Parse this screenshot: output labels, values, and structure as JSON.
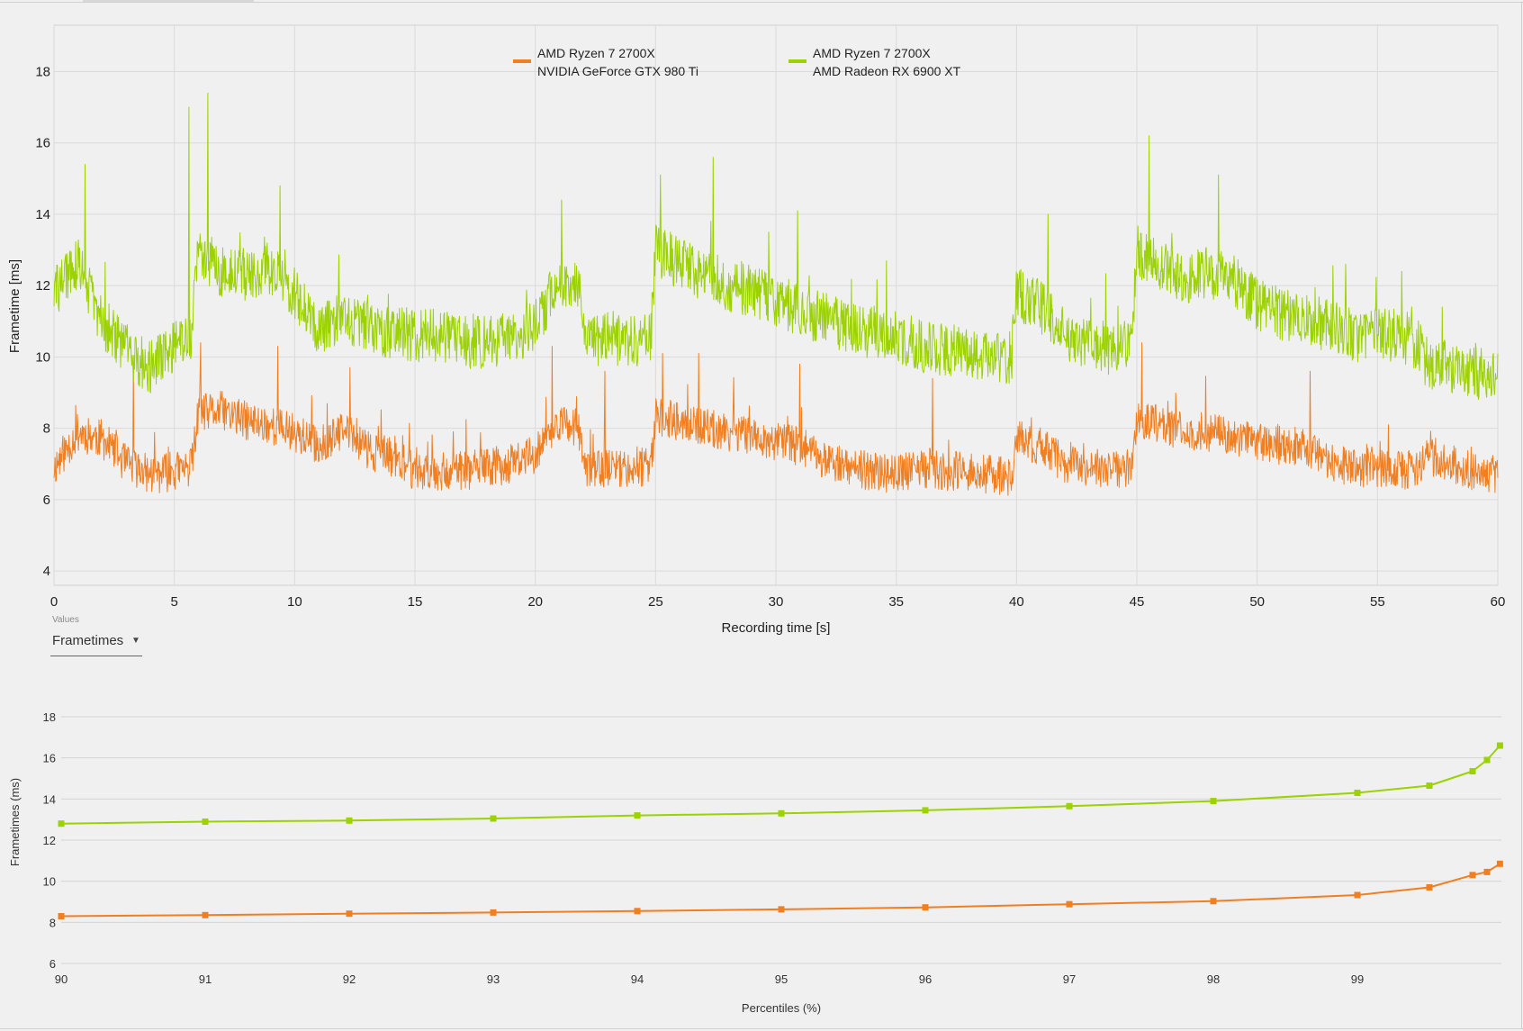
{
  "colors": {
    "series_a": "#f07f22",
    "series_b": "#9bd200",
    "plot_bg": "#f0f0f0",
    "grid": "#dadada"
  },
  "values_selector": {
    "caption": "Values",
    "selected": "Frametimes",
    "icon": "chevron-down-icon"
  },
  "chart_data": [
    {
      "type": "line",
      "ylabel": "Frametime [ms]",
      "xlabel": "Recording time [s]",
      "xlim": [
        0,
        60
      ],
      "ylim": [
        3.6,
        19.3
      ],
      "x_ticks": [
        "0",
        "5",
        "10",
        "15",
        "20",
        "25",
        "30",
        "35",
        "40",
        "45",
        "50",
        "55",
        "60"
      ],
      "y_ticks": [
        "4",
        "6",
        "8",
        "10",
        "12",
        "14",
        "16",
        "18"
      ],
      "legend_position": "top-center",
      "series": [
        {
          "name_line1": "AMD Ryzen 7 2700X",
          "name_line2": "NVIDIA GeForce GTX 980 Ti",
          "color": "#f07f22",
          "baseline": {
            "t": [
              0,
              1,
              2,
              3,
              4,
              5,
              5.7,
              6,
              7,
              8,
              9,
              10,
              11,
              12,
              12.5,
              13,
              14,
              15,
              16,
              17,
              18,
              19,
              20,
              21,
              21.8,
              22,
              23,
              24,
              24.8,
              25,
              26,
              27,
              28,
              29,
              30,
              31,
              32,
              33,
              34,
              35,
              36,
              37,
              38,
              39,
              39.8,
              40,
              41,
              42,
              43,
              44,
              44.8,
              45,
              46,
              47,
              48,
              49,
              50,
              51,
              52,
              53,
              54,
              55,
              56,
              56.8,
              57,
              58,
              59,
              60
            ],
            "ms": [
              6.9,
              7.9,
              7.7,
              7.0,
              6.7,
              6.8,
              6.9,
              8.4,
              8.5,
              8.2,
              8.1,
              7.9,
              7.5,
              7.9,
              7.8,
              7.4,
              7.2,
              6.8,
              6.8,
              6.8,
              6.9,
              7.0,
              7.3,
              8.2,
              8.0,
              6.9,
              6.9,
              6.9,
              6.9,
              8.3,
              8.2,
              8.0,
              7.9,
              7.8,
              7.6,
              7.5,
              7.1,
              6.9,
              6.8,
              6.7,
              6.9,
              6.8,
              6.8,
              6.7,
              6.6,
              7.7,
              7.5,
              7.0,
              6.9,
              6.8,
              6.9,
              8.3,
              8.1,
              7.9,
              7.9,
              7.8,
              7.6,
              7.5,
              7.5,
              7.0,
              6.9,
              6.9,
              6.8,
              6.9,
              7.3,
              7.0,
              6.8,
              6.7
            ],
            "noise_ms": 0.55,
            "seed": 11
          },
          "spikes": [
            {
              "t": 3.3,
              "ms": 9.8
            },
            {
              "t": 6.1,
              "ms": 10.4
            },
            {
              "t": 9.3,
              "ms": 10.3
            },
            {
              "t": 12.3,
              "ms": 9.7
            },
            {
              "t": 20.7,
              "ms": 10.3
            },
            {
              "t": 22.9,
              "ms": 9.6
            },
            {
              "t": 25.3,
              "ms": 10.1
            },
            {
              "t": 26.8,
              "ms": 10.1
            },
            {
              "t": 31.0,
              "ms": 9.8
            },
            {
              "t": 45.2,
              "ms": 10.4
            },
            {
              "t": 52.2,
              "ms": 9.6
            },
            {
              "t": 36.5,
              "ms": 9.4
            }
          ]
        },
        {
          "name_line1": "AMD Ryzen 7 2700X",
          "name_line2": "AMD Radeon RX 6900 XT",
          "color": "#9bd200",
          "baseline": {
            "t": [
              0,
              1,
              2,
              3,
              4,
              5,
              5.7,
              6,
              7,
              8,
              9,
              10,
              11,
              12,
              12.5,
              13,
              14,
              15,
              16,
              17,
              18,
              19,
              20,
              21,
              21.8,
              22,
              23,
              24,
              24.8,
              25,
              26,
              27,
              28,
              29,
              30,
              31,
              32,
              33,
              34,
              35,
              36,
              37,
              38,
              39,
              39.8,
              40,
              41,
              42,
              43,
              44,
              44.8,
              45,
              46,
              47,
              48,
              49,
              50,
              51,
              52,
              53,
              54,
              55,
              56,
              56.8,
              57,
              58,
              59,
              60
            ],
            "ms": [
              11.8,
              12.6,
              11.0,
              10.2,
              9.7,
              10.3,
              10.6,
              13.0,
              12.4,
              12.3,
              12.4,
              11.8,
              10.8,
              11.2,
              11.0,
              10.8,
              10.7,
              10.6,
              10.6,
              10.4,
              10.4,
              10.5,
              10.9,
              12.2,
              12.0,
              10.5,
              10.5,
              10.4,
              10.5,
              13.0,
              12.6,
              12.3,
              12.0,
              11.9,
              11.6,
              11.3,
              11.1,
              10.8,
              10.7,
              10.6,
              10.3,
              10.2,
              10.2,
              10.0,
              10.0,
              11.8,
              11.4,
              10.6,
              10.4,
              10.2,
              10.3,
              13.0,
              12.5,
              12.2,
              12.4,
              12.2,
              11.5,
              11.2,
              11.0,
              10.9,
              10.6,
              10.6,
              10.6,
              10.3,
              9.9,
              9.7,
              9.5,
              9.6
            ],
            "noise_ms": 0.75,
            "seed": 29
          },
          "spikes": [
            {
              "t": 1.3,
              "ms": 15.4
            },
            {
              "t": 5.6,
              "ms": 17.0
            },
            {
              "t": 6.4,
              "ms": 17.4
            },
            {
              "t": 9.4,
              "ms": 14.8
            },
            {
              "t": 21.1,
              "ms": 14.4
            },
            {
              "t": 25.2,
              "ms": 15.1
            },
            {
              "t": 27.4,
              "ms": 15.6
            },
            {
              "t": 30.9,
              "ms": 14.1
            },
            {
              "t": 41.3,
              "ms": 14.0
            },
            {
              "t": 45.5,
              "ms": 16.2
            },
            {
              "t": 48.4,
              "ms": 15.1
            },
            {
              "t": 56.0,
              "ms": 12.4
            }
          ]
        }
      ]
    },
    {
      "type": "line",
      "ylabel": "Frametimes (ms)",
      "xlabel": "Percentiles (%)",
      "xlim": [
        90,
        100
      ],
      "ylim": [
        6,
        18
      ],
      "x_ticks": [
        "90",
        "91",
        "92",
        "93",
        "94",
        "95",
        "96",
        "97",
        "98",
        "99"
      ],
      "y_ticks": [
        "6",
        "8",
        "10",
        "12",
        "14",
        "16",
        "18"
      ],
      "series": [
        {
          "name": "AMD Ryzen 7 2700X / AMD Radeon RX 6900 XT",
          "color": "#9bd200",
          "x": [
            90,
            91,
            92,
            93,
            94,
            95,
            96,
            97,
            98,
            99,
            99.5,
            99.8,
            99.9,
            99.99
          ],
          "y": [
            12.8,
            12.9,
            12.95,
            13.05,
            13.2,
            13.3,
            13.45,
            13.65,
            13.9,
            14.3,
            14.65,
            15.35,
            15.9,
            16.6
          ]
        },
        {
          "name": "AMD Ryzen 7 2700X / NVIDIA GeForce GTX 980 Ti",
          "color": "#f07f22",
          "x": [
            90,
            91,
            92,
            93,
            94,
            95,
            96,
            97,
            98,
            99,
            99.5,
            99.8,
            99.9,
            99.99
          ],
          "y": [
            8.3,
            8.35,
            8.42,
            8.48,
            8.55,
            8.63,
            8.73,
            8.88,
            9.03,
            9.33,
            9.7,
            10.3,
            10.45,
            10.85
          ]
        }
      ]
    }
  ]
}
